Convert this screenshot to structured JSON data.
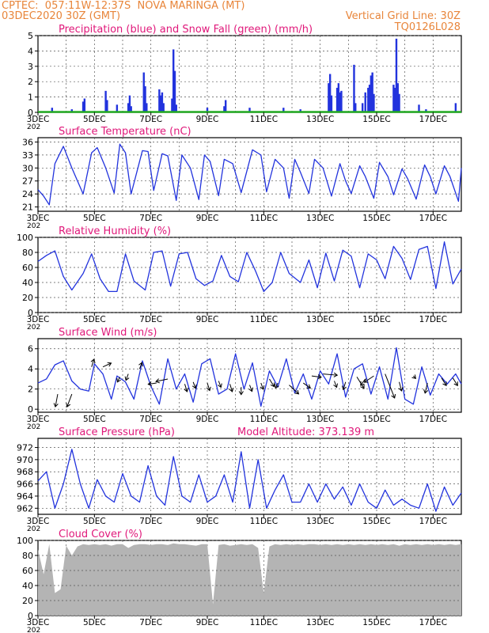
{
  "header": {
    "line1_left": "CPTEC:  057:11W-12:37S  NOVA MARINGA (MT)",
    "line2_left": "03DEC2020 30Z (GMT)",
    "line2_right": "Vertical Grid Line: 30Z",
    "line3_right": "TQ0126L028"
  },
  "colors": {
    "header": "#e8853a",
    "title": "#e0187a",
    "series": "#2233dd",
    "snow": "#22aa22",
    "cloud": "#b4b4b4",
    "grid": "#555555"
  },
  "x_axis": {
    "day_range": [
      3,
      18
    ],
    "tick_days": [
      3,
      5,
      7,
      9,
      11,
      13,
      15,
      17
    ],
    "labels": [
      "3DEC",
      "5DEC",
      "7DEC",
      "9DEC",
      "11DEC",
      "13DEC",
      "15DEC",
      "17DEC"
    ],
    "year_stub": "202"
  },
  "chart_data": [
    {
      "type": "bar",
      "title": "Precipitation (blue) and Snow Fall (green) (mm/h)",
      "ylim": [
        0,
        5
      ],
      "yticks": [
        0,
        1,
        2,
        3,
        4,
        5
      ],
      "series": [
        {
          "name": "Precipitation",
          "points": [
            [
              3.5,
              0.3
            ],
            [
              4.2,
              0.2
            ],
            [
              4.6,
              0.7
            ],
            [
              4.65,
              0.9
            ],
            [
              5.4,
              1.4
            ],
            [
              5.45,
              0.8
            ],
            [
              5.8,
              0.5
            ],
            [
              6.2,
              0.6
            ],
            [
              6.25,
              1.1
            ],
            [
              6.3,
              0.4
            ],
            [
              6.75,
              2.6
            ],
            [
              6.8,
              1.7
            ],
            [
              6.85,
              0.6
            ],
            [
              7.3,
              1.5
            ],
            [
              7.35,
              1.1
            ],
            [
              7.4,
              1.3
            ],
            [
              7.45,
              0.6
            ],
            [
              7.75,
              0.9
            ],
            [
              7.8,
              4.1
            ],
            [
              7.85,
              2.7
            ],
            [
              7.9,
              0.5
            ],
            [
              9.0,
              0.3
            ],
            [
              9.6,
              0.4
            ],
            [
              9.65,
              0.8
            ],
            [
              10.5,
              0.3
            ],
            [
              11.7,
              0.3
            ],
            [
              12.3,
              0.2
            ],
            [
              13.3,
              1.9
            ],
            [
              13.35,
              2.5
            ],
            [
              13.4,
              1.1
            ],
            [
              13.6,
              1.6
            ],
            [
              13.65,
              1.9
            ],
            [
              13.7,
              1.3
            ],
            [
              13.75,
              1.4
            ],
            [
              14.2,
              3.1
            ],
            [
              14.25,
              0.6
            ],
            [
              14.5,
              0.6
            ],
            [
              14.6,
              1.3
            ],
            [
              14.7,
              1.6
            ],
            [
              14.75,
              1.8
            ],
            [
              14.8,
              2.4
            ],
            [
              14.85,
              2.6
            ],
            [
              14.9,
              1.2
            ],
            [
              15.6,
              1.8
            ],
            [
              15.65,
              1.6
            ],
            [
              15.7,
              4.8
            ],
            [
              15.75,
              1.9
            ],
            [
              15.8,
              1.2
            ],
            [
              16.5,
              0.5
            ],
            [
              16.75,
              0.2
            ],
            [
              17.8,
              0.6
            ]
          ]
        },
        {
          "name": "Snow Fall",
          "baseline": 0
        }
      ]
    },
    {
      "type": "line",
      "title": "Surface Temperature (nC)",
      "ylim": [
        20,
        37
      ],
      "yticks": [
        21,
        24,
        27,
        30,
        33,
        36
      ],
      "x": [
        3.0,
        3.2,
        3.4,
        3.6,
        3.9,
        4.2,
        4.6,
        4.9,
        5.1,
        5.4,
        5.7,
        5.9,
        6.1,
        6.3,
        6.7,
        6.9,
        7.1,
        7.4,
        7.6,
        7.9,
        8.1,
        8.4,
        8.7,
        8.9,
        9.1,
        9.4,
        9.6,
        9.9,
        10.2,
        10.6,
        10.9,
        11.1,
        11.4,
        11.7,
        11.9,
        12.1,
        12.3,
        12.6,
        12.8,
        13.1,
        13.4,
        13.7,
        13.9,
        14.1,
        14.4,
        14.6,
        14.9,
        15.1,
        15.4,
        15.6,
        15.9,
        16.1,
        16.4,
        16.7,
        16.9,
        17.1,
        17.4,
        17.6,
        17.9,
        18.0
      ],
      "series": [
        {
          "values": [
            25,
            23.5,
            21.5,
            31,
            35,
            30,
            24,
            33.5,
            34.7,
            30,
            24.2,
            35.5,
            33.5,
            24,
            34,
            33.8,
            24.8,
            33.3,
            32.8,
            22.5,
            33,
            30,
            22.7,
            33,
            31.5,
            23.6,
            32,
            31,
            24.3,
            34.2,
            33,
            24.5,
            32,
            30,
            23,
            32,
            29,
            24.1,
            32,
            30,
            23.5,
            31,
            27,
            24.1,
            30.5,
            28,
            23,
            31.3,
            28,
            23.8,
            29.8,
            27.5,
            22.8,
            30.7,
            28,
            24,
            30.5,
            28,
            22.3,
            30
          ]
        }
      ]
    },
    {
      "type": "line",
      "title": "Relative Humidity (%)",
      "ylim": [
        0,
        100
      ],
      "yticks": [
        0,
        20,
        40,
        60,
        80,
        100
      ],
      "x": [
        3.0,
        3.3,
        3.6,
        3.9,
        4.2,
        4.6,
        4.9,
        5.2,
        5.5,
        5.8,
        6.1,
        6.4,
        6.8,
        7.1,
        7.4,
        7.7,
        8.0,
        8.3,
        8.6,
        8.9,
        9.2,
        9.5,
        9.8,
        10.1,
        10.4,
        10.7,
        11.0,
        11.3,
        11.6,
        11.9,
        12.3,
        12.6,
        12.9,
        13.2,
        13.5,
        13.8,
        14.1,
        14.4,
        14.7,
        15.0,
        15.3,
        15.6,
        15.9,
        16.2,
        16.5,
        16.8,
        17.1,
        17.4,
        17.7,
        18.0
      ],
      "series": [
        {
          "values": [
            68,
            76,
            82,
            48,
            30,
            52,
            78,
            45,
            28,
            28,
            78,
            42,
            30,
            80,
            82,
            35,
            78,
            80,
            45,
            36,
            42,
            76,
            48,
            41,
            80,
            56,
            28,
            40,
            80,
            52,
            40,
            70,
            33,
            79,
            42,
            83,
            75,
            33,
            78,
            70,
            45,
            88,
            72,
            44,
            84,
            88,
            32,
            94,
            38,
            58
          ]
        }
      ]
    },
    {
      "type": "line",
      "title": "Surface Wind (m/s)",
      "ylim": [
        -0.3,
        7
      ],
      "yticks": [
        0,
        2,
        4,
        6
      ],
      "x": [
        3.0,
        3.3,
        3.6,
        3.9,
        4.2,
        4.5,
        4.8,
        5.0,
        5.3,
        5.6,
        5.8,
        6.1,
        6.4,
        6.7,
        7.0,
        7.3,
        7.6,
        7.9,
        8.2,
        8.5,
        8.8,
        9.1,
        9.4,
        9.7,
        10.0,
        10.3,
        10.6,
        10.9,
        11.2,
        11.5,
        11.8,
        12.1,
        12.4,
        12.7,
        13.0,
        13.3,
        13.6,
        13.9,
        14.2,
        14.5,
        14.8,
        15.1,
        15.4,
        15.7,
        16.0,
        16.3,
        16.6,
        16.9,
        17.2,
        17.5,
        17.8,
        18.0
      ],
      "series": [
        {
          "values": [
            2.6,
            3,
            4.4,
            4.8,
            2.8,
            2,
            1.8,
            4.5,
            3.5,
            1,
            3.3,
            2.7,
            1,
            4.8,
            2.3,
            0.5,
            5,
            2,
            3.5,
            0.7,
            4.5,
            5,
            1.5,
            2,
            5.5,
            2,
            4.6,
            0.3,
            3.8,
            2.2,
            5,
            1.6,
            3.5,
            1,
            3.8,
            2.5,
            5.5,
            1.2,
            4,
            4.5,
            1.5,
            4.2,
            1,
            6.1,
            1,
            0.5,
            4.2,
            1.4,
            3.5,
            2.5,
            3.5,
            2.5
          ]
        }
      ],
      "arrows": [
        [
          3.7,
          1.5,
          -0.1,
          1
        ],
        [
          4.2,
          1.5,
          -0.2,
          1
        ],
        [
          4.9,
          4.2,
          0.1,
          -0.6
        ],
        [
          5.3,
          4.2,
          0.35,
          -0.3
        ],
        [
          5.9,
          3.2,
          -0.1,
          0.4
        ],
        [
          6.2,
          3.5,
          -0.1,
          0.5
        ],
        [
          6.6,
          4,
          0.1,
          -0.5
        ],
        [
          7.2,
          2.6,
          -0.35,
          0.1
        ],
        [
          7.6,
          3,
          -0.5,
          0.2
        ],
        [
          8.2,
          2.5,
          0.1,
          0.6
        ],
        [
          8.5,
          2.7,
          0.1,
          0.5
        ],
        [
          9.0,
          2.6,
          0.1,
          0.6
        ],
        [
          9.4,
          2.8,
          0.1,
          0.5
        ],
        [
          9.8,
          2.5,
          0.1,
          0.6
        ],
        [
          10.2,
          2.2,
          0,
          0.6
        ],
        [
          10.5,
          2.4,
          0.1,
          0.5
        ],
        [
          10.9,
          2.6,
          0.1,
          0.5
        ],
        [
          11.2,
          3,
          0.2,
          0.6
        ],
        [
          11.5,
          2.6,
          -0.1,
          0.4
        ],
        [
          11.9,
          2.4,
          0.4,
          0.7
        ],
        [
          12.4,
          2.6,
          0.3,
          0.4
        ],
        [
          12.7,
          3.3,
          0.4,
          0.1
        ],
        [
          13.1,
          3.5,
          0.6,
          0.1
        ],
        [
          13.5,
          2.8,
          0.1,
          0.5
        ],
        [
          13.9,
          2.7,
          -0.1,
          0.6
        ],
        [
          14.3,
          3.2,
          0.3,
          0.9
        ],
        [
          14.6,
          3,
          -0.2,
          0.5
        ],
        [
          14.9,
          3.3,
          -0.4,
          0.5
        ],
        [
          15.3,
          3.5,
          0.4,
          1.9
        ],
        [
          15.8,
          2.7,
          0.1,
          0.7
        ],
        [
          16.3,
          3.3,
          0.1,
          0.2
        ],
        [
          16.8,
          2.6,
          -0.1,
          0.8
        ],
        [
          17.3,
          3.1,
          0.2,
          0.6
        ],
        [
          17.7,
          3.1,
          0.2,
          0.6
        ]
      ]
    },
    {
      "type": "line",
      "title": "Surface Pressure (hPa)",
      "title_extra": "Model Altitude: 373.139  m",
      "ylim": [
        961,
        973.5
      ],
      "yticks": [
        962,
        964,
        966,
        968,
        970,
        972
      ],
      "x": [
        3.0,
        3.3,
        3.6,
        3.9,
        4.2,
        4.5,
        4.8,
        5.1,
        5.4,
        5.7,
        6.0,
        6.3,
        6.6,
        6.9,
        7.2,
        7.5,
        7.8,
        8.1,
        8.4,
        8.7,
        9.0,
        9.3,
        9.6,
        9.9,
        10.2,
        10.5,
        10.8,
        11.1,
        11.4,
        11.7,
        12.0,
        12.3,
        12.6,
        12.9,
        13.2,
        13.5,
        13.8,
        14.1,
        14.4,
        14.7,
        15.0,
        15.3,
        15.6,
        15.9,
        16.2,
        16.5,
        16.8,
        17.1,
        17.4,
        17.7,
        18.0
      ],
      "series": [
        {
          "values": [
            966.5,
            968,
            962,
            966,
            971.7,
            966,
            962,
            966.7,
            964,
            963,
            967.7,
            964,
            963,
            969,
            964,
            962.5,
            970.5,
            964,
            963,
            967.5,
            963,
            964,
            967.5,
            963,
            971.3,
            962,
            970,
            962,
            965,
            967.5,
            963,
            963,
            966,
            963,
            966,
            963.5,
            965.5,
            962.5,
            966,
            963,
            962,
            965,
            962.5,
            963.5,
            962.5,
            962,
            966,
            961.5,
            965.5,
            962.5,
            964.5
          ]
        }
      ]
    },
    {
      "type": "area",
      "title": "Cloud Cover (%)",
      "ylim": [
        0,
        100
      ],
      "yticks": [
        0,
        20,
        40,
        60,
        80,
        100
      ],
      "x": [
        3.0,
        3.2,
        3.4,
        3.6,
        3.8,
        4.0,
        4.2,
        4.4,
        4.6,
        4.8,
        5.0,
        5.2,
        5.4,
        5.6,
        5.8,
        6.0,
        6.2,
        6.4,
        6.6,
        6.8,
        7.0,
        7.2,
        7.4,
        7.6,
        7.8,
        8.0,
        8.2,
        8.4,
        8.6,
        8.8,
        9.0,
        9.2,
        9.4,
        9.6,
        9.8,
        10.0,
        10.2,
        10.4,
        10.6,
        10.8,
        11.0,
        11.2,
        11.4,
        11.6,
        11.8,
        12.0,
        12.2,
        12.4,
        12.6,
        12.8,
        13.0,
        13.2,
        13.4,
        13.6,
        13.8,
        14.0,
        14.2,
        14.4,
        14.6,
        14.8,
        15.0,
        15.2,
        15.4,
        15.6,
        15.8,
        16.0,
        16.2,
        16.4,
        16.6,
        16.8,
        17.0,
        17.2,
        17.4,
        17.6,
        17.8,
        18.0
      ],
      "series": [
        {
          "values": [
            88,
            55,
            95,
            30,
            35,
            93,
            80,
            92,
            95,
            94,
            95,
            94,
            95,
            93,
            95,
            95,
            90,
            94,
            95,
            95,
            94,
            95,
            95,
            94,
            96,
            95,
            95,
            94,
            93,
            95,
            95,
            15,
            94,
            95,
            93,
            94,
            95,
            94,
            95,
            90,
            30,
            92,
            95,
            94,
            95,
            94,
            95,
            94,
            95,
            95,
            94,
            95,
            94,
            95,
            94,
            95,
            94,
            95,
            94,
            95,
            94,
            95,
            94,
            95,
            93,
            95,
            94,
            95,
            94,
            95,
            94,
            95,
            94,
            95,
            94,
            95
          ]
        }
      ]
    }
  ]
}
